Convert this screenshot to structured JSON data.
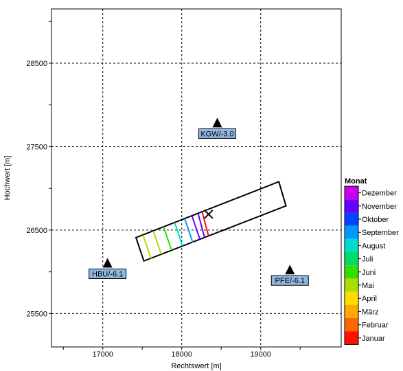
{
  "chart_data": {
    "type": "scatter",
    "xlabel": "Rechtswert [m]",
    "ylabel": "Hochwert [m]",
    "xlim": [
      16350,
      20020
    ],
    "ylim": [
      25100,
      29150
    ],
    "xticks": [
      17000,
      18000,
      19000
    ],
    "yticks": [
      25500,
      26500,
      27500,
      28500
    ],
    "grid": true,
    "stations": [
      {
        "label": "KGW/-3.0",
        "x": 18450,
        "y": 27780
      },
      {
        "label": "HBU/-6.1",
        "x": 17060,
        "y": 26100
      },
      {
        "label": "PFE/-6.1",
        "x": 19370,
        "y": 26020
      }
    ],
    "polygon": [
      [
        17420,
        26410
      ],
      [
        19230,
        27080
      ],
      [
        19320,
        26790
      ],
      [
        17520,
        26130
      ]
    ],
    "marker_x": {
      "x": 18340,
      "y": 26690
    },
    "isochrones": [
      {
        "month": "Mai",
        "x0": 17510,
        "y0": 26440,
        "x1": 17610,
        "y1": 26160
      },
      {
        "month": "Mai",
        "x0": 17640,
        "y0": 26490,
        "x1": 17740,
        "y1": 26210
      },
      {
        "month": "Juni",
        "x0": 17770,
        "y0": 26540,
        "x1": 17870,
        "y1": 26260
      },
      {
        "month": "August",
        "x0": 17910,
        "y0": 26590,
        "x1": 18010,
        "y1": 26310
      },
      {
        "month": "September",
        "x0": 18040,
        "y0": 26630,
        "x1": 18140,
        "y1": 26350
      },
      {
        "month": "November",
        "x0": 18130,
        "y0": 26670,
        "x1": 18230,
        "y1": 26390
      },
      {
        "month": "November",
        "x0": 18210,
        "y0": 26690,
        "x1": 18290,
        "y1": 26410
      },
      {
        "month": "Januar",
        "x0": 18260,
        "y0": 26710,
        "x1": 18340,
        "y1": 26430
      }
    ],
    "legend": {
      "title": "Monat",
      "placement": "right",
      "items": [
        {
          "label": "Dezember",
          "color": "#cc00ee"
        },
        {
          "label": "November",
          "color": "#6600ff"
        },
        {
          "label": "Oktober",
          "color": "#0044ff"
        },
        {
          "label": "September",
          "color": "#0099ff"
        },
        {
          "label": "August",
          "color": "#00ddcc"
        },
        {
          "label": "Juli",
          "color": "#00dd66"
        },
        {
          "label": "Juni",
          "color": "#33dd00"
        },
        {
          "label": "Mai",
          "color": "#aadd00"
        },
        {
          "label": "April",
          "color": "#ffdd00"
        },
        {
          "label": "März",
          "color": "#ffaa00"
        },
        {
          "label": "Februar",
          "color": "#ff6600"
        },
        {
          "label": "Januar",
          "color": "#ff1100"
        }
      ]
    }
  }
}
